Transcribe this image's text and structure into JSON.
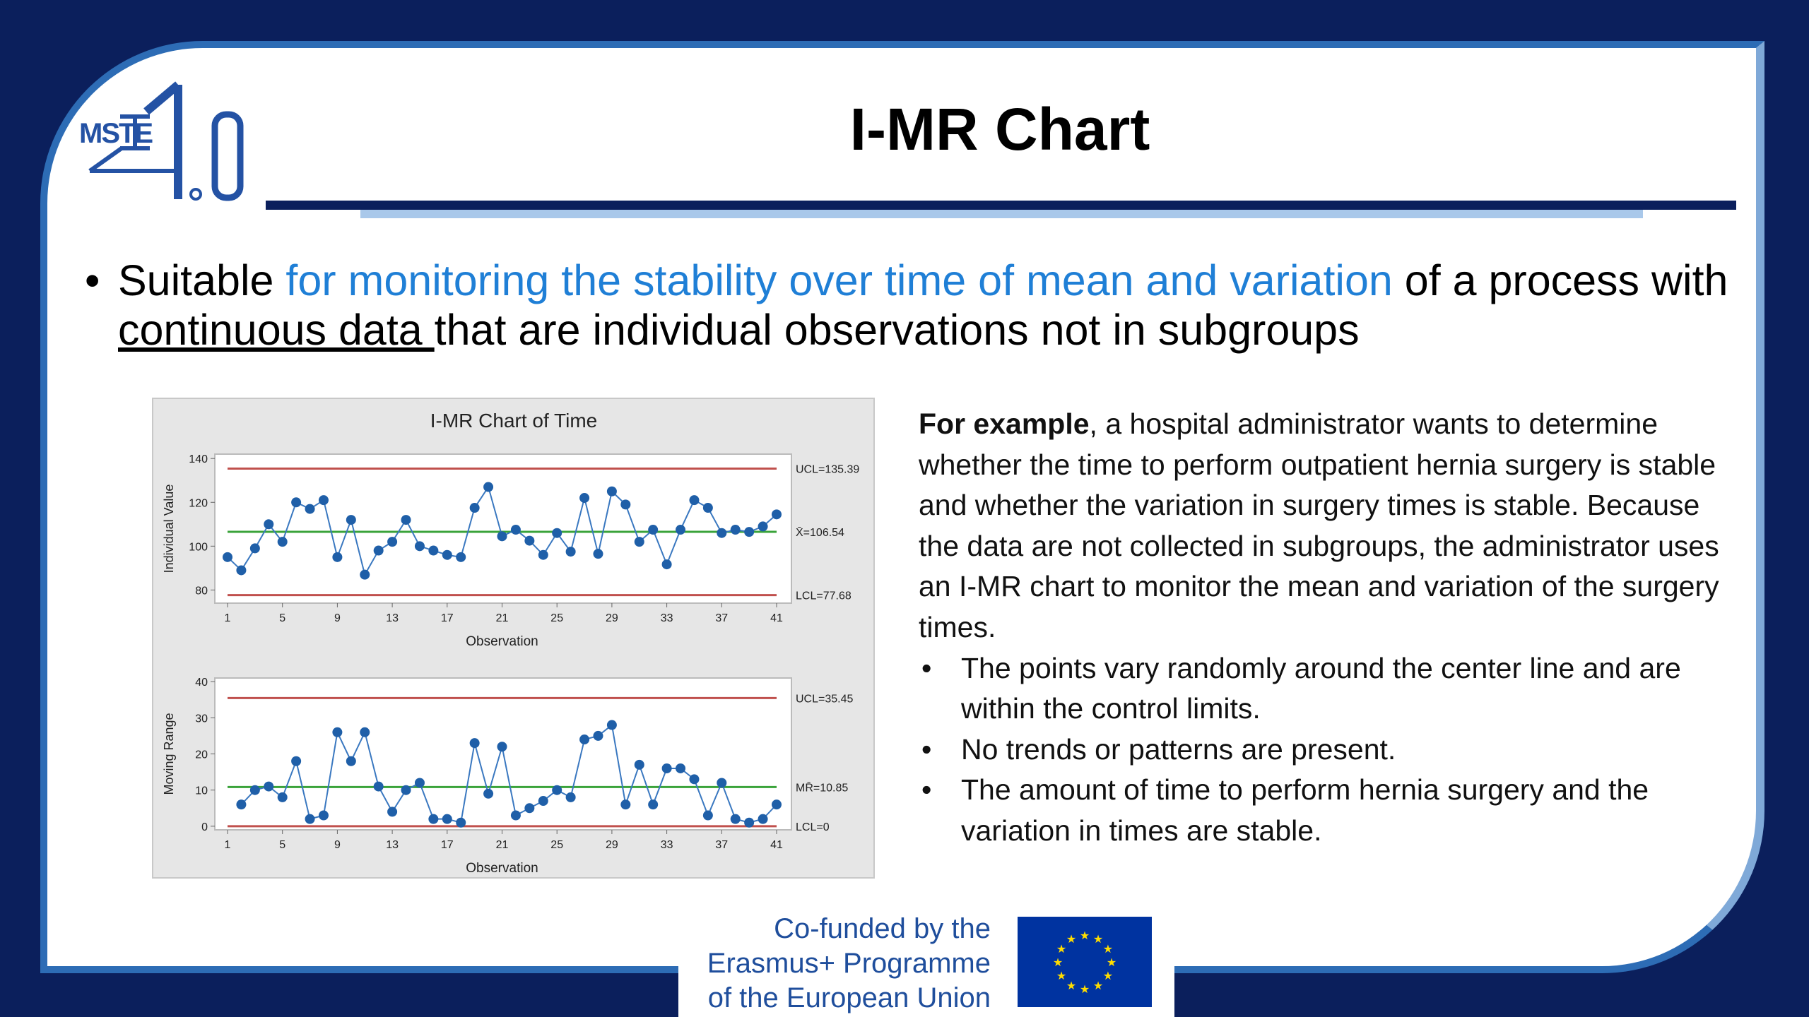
{
  "logo": {
    "text": "MSTE 4.0",
    "color": "#2452a4"
  },
  "header": {
    "title": "I-MR Chart"
  },
  "intro": {
    "bullet": "•",
    "part1": "Suitable ",
    "highlight": "for monitoring the stability over time of mean and variation",
    "part2": " of a process with ",
    "underlined": "continuous data ",
    "part3": "that are individual observations not in subgroups"
  },
  "example": {
    "lead": "For example",
    "body": ", a hospital administrator wants to determine whether the time to perform outpatient hernia surgery is stable and whether the variation in surgery times is stable. Because the data are not collected in subgroups, the administrator uses an I-MR chart to monitor the mean and variation of the surgery times.",
    "bullets": [
      "The points vary randomly around the center line and are within the control limits.",
      "No trends or patterns are present.",
      "The amount of time to perform hernia surgery and the variation in times are stable."
    ]
  },
  "footer": {
    "lines": [
      "Co-funded by the",
      "Erasmus+ Programme",
      "of the European Union"
    ],
    "flag_color": "#0033a0",
    "star_color": "#ffdd00"
  },
  "chart_data": [
    {
      "type": "line",
      "title": "I-MR Chart of Time",
      "xlabel": "Observation",
      "ylabel": "Individual Value",
      "xticks": [
        1,
        5,
        9,
        13,
        17,
        21,
        25,
        29,
        33,
        37,
        41
      ],
      "yticks": [
        80,
        100,
        120,
        140
      ],
      "ylim": [
        74,
        142
      ],
      "x": [
        1,
        2,
        3,
        4,
        5,
        6,
        7,
        8,
        9,
        10,
        11,
        12,
        13,
        14,
        15,
        16,
        17,
        18,
        19,
        20,
        21,
        22,
        23,
        24,
        25,
        26,
        27,
        28,
        29,
        30,
        31,
        32,
        33,
        34,
        35,
        36,
        37,
        38,
        39,
        40,
        41
      ],
      "values": [
        95,
        89,
        99,
        110,
        102,
        120,
        117,
        121,
        95,
        112,
        87,
        98,
        102,
        112,
        100,
        98,
        96,
        95,
        117.5,
        127,
        104.5,
        107.5,
        102.5,
        96,
        106,
        97.5,
        122,
        96.5,
        125,
        119,
        102,
        107.5,
        91.7,
        107.5,
        121,
        117.5,
        106,
        107.5,
        106.5,
        109,
        114.5
      ],
      "limits": [
        {
          "label": "UCL=135.39",
          "value": 135.39,
          "color": "#c0504d"
        },
        {
          "label": "X̄=106.54",
          "value": 106.54,
          "color": "#3aa33a"
        },
        {
          "label": "LCL=77.68",
          "value": 77.68,
          "color": "#c0504d"
        }
      ],
      "point_color": "#1f5fa8"
    },
    {
      "type": "line",
      "xlabel": "Observation",
      "ylabel": "Moving Range",
      "xticks": [
        1,
        5,
        9,
        13,
        17,
        21,
        25,
        29,
        33,
        37,
        41
      ],
      "yticks": [
        0,
        10,
        20,
        30,
        40
      ],
      "ylim": [
        -1,
        41
      ],
      "x": [
        2,
        3,
        4,
        5,
        6,
        7,
        8,
        9,
        10,
        11,
        12,
        13,
        14,
        15,
        16,
        17,
        18,
        19,
        20,
        21,
        22,
        23,
        24,
        25,
        26,
        27,
        28,
        29,
        30,
        31,
        32,
        33,
        34,
        35,
        36,
        37,
        38,
        39,
        40,
        41
      ],
      "values": [
        6,
        10,
        11,
        8,
        18,
        2,
        3,
        26,
        18,
        26,
        11,
        4,
        10,
        12,
        2,
        2,
        1,
        23,
        9,
        22,
        3,
        5,
        7,
        10,
        8,
        24,
        25,
        28,
        6,
        17,
        6,
        16,
        16,
        13,
        3,
        12,
        2,
        1,
        2,
        6
      ],
      "limits": [
        {
          "label": "UCL=35.45",
          "value": 35.45,
          "color": "#c0504d"
        },
        {
          "label": "MR̄=10.85",
          "value": 10.85,
          "color": "#3aa33a"
        },
        {
          "label": "LCL=0",
          "value": 0,
          "color": "#c0504d"
        }
      ],
      "point_color": "#1f5fa8"
    }
  ]
}
